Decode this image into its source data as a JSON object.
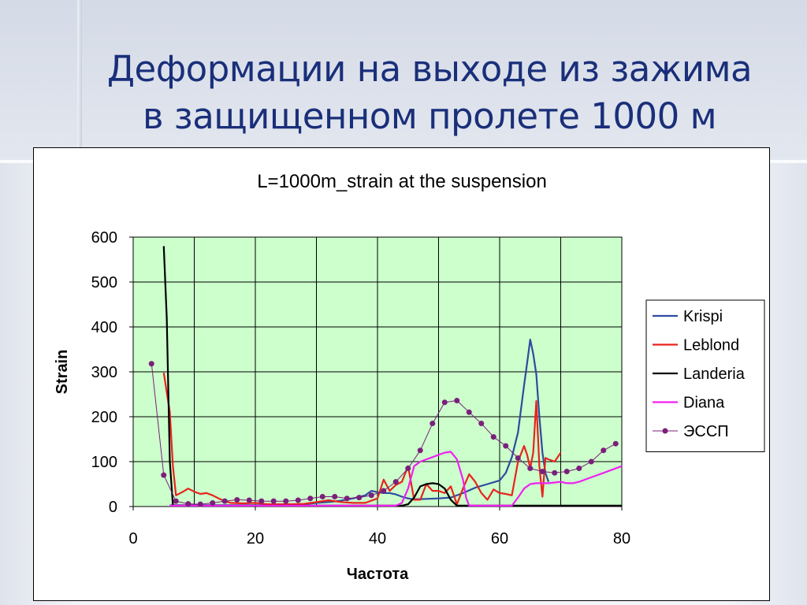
{
  "slide": {
    "title_line1": "Деформации на выходе из зажима",
    "title_line2": "в  защищенном пролете 1000 м"
  },
  "colors": {
    "title": "#1a2f7a",
    "plot_background": "#ccffcc",
    "grid": "#000000"
  },
  "chart_data": {
    "type": "line",
    "title": "L=1000m_strain at the suspension",
    "xlabel": "Частота",
    "ylabel": "Strain",
    "xlim": [
      0,
      80
    ],
    "ylim": [
      0,
      600
    ],
    "xticks": [
      "0",
      "20",
      "40",
      "60",
      "80"
    ],
    "yticks": [
      "0",
      "100",
      "200",
      "300",
      "400",
      "500",
      "600"
    ],
    "grid": true,
    "legend_position": "right",
    "series": [
      {
        "name": "Krispi",
        "color": "#2f4a9e",
        "markers": false,
        "points": [
          [
            6,
            3
          ],
          [
            8,
            3
          ],
          [
            10,
            3
          ],
          [
            12,
            3
          ],
          [
            14,
            3
          ],
          [
            16,
            3
          ],
          [
            18,
            3
          ],
          [
            20,
            3
          ],
          [
            22,
            3
          ],
          [
            24,
            3
          ],
          [
            26,
            4
          ],
          [
            28,
            5
          ],
          [
            30,
            8
          ],
          [
            32,
            10
          ],
          [
            34,
            13
          ],
          [
            36,
            18
          ],
          [
            38,
            25
          ],
          [
            39,
            35
          ],
          [
            40,
            32
          ],
          [
            41,
            30
          ],
          [
            42,
            30
          ],
          [
            43,
            27
          ],
          [
            44,
            22
          ],
          [
            45,
            18
          ],
          [
            46,
            16
          ],
          [
            48,
            17
          ],
          [
            50,
            18
          ],
          [
            52,
            20
          ],
          [
            54,
            30
          ],
          [
            56,
            42
          ],
          [
            58,
            50
          ],
          [
            60,
            58
          ],
          [
            61,
            75
          ],
          [
            62,
            110
          ],
          [
            63,
            165
          ],
          [
            64,
            270
          ],
          [
            64.5,
            320
          ],
          [
            65,
            372
          ],
          [
            65.5,
            340
          ],
          [
            66,
            295
          ],
          [
            66.5,
            200
          ],
          [
            67,
            120
          ],
          [
            67.5,
            75
          ],
          [
            68,
            55
          ]
        ]
      },
      {
        "name": "Leblond",
        "color": "#e8231d",
        "markers": false,
        "points": [
          [
            5,
            298
          ],
          [
            6,
            210
          ],
          [
            6.5,
            90
          ],
          [
            7,
            25
          ],
          [
            8,
            32
          ],
          [
            9,
            40
          ],
          [
            10,
            33
          ],
          [
            11,
            28
          ],
          [
            12,
            30
          ],
          [
            13,
            25
          ],
          [
            14,
            18
          ],
          [
            15,
            12
          ],
          [
            16,
            8
          ],
          [
            18,
            7
          ],
          [
            20,
            8
          ],
          [
            22,
            5
          ],
          [
            24,
            5
          ],
          [
            26,
            5
          ],
          [
            28,
            6
          ],
          [
            30,
            10
          ],
          [
            32,
            14
          ],
          [
            34,
            10
          ],
          [
            36,
            8
          ],
          [
            38,
            8
          ],
          [
            40,
            18
          ],
          [
            41,
            60
          ],
          [
            42,
            35
          ],
          [
            43,
            48
          ],
          [
            44,
            55
          ],
          [
            45,
            90
          ],
          [
            46,
            15
          ],
          [
            47,
            15
          ],
          [
            48,
            50
          ],
          [
            49,
            35
          ],
          [
            50,
            35
          ],
          [
            51,
            30
          ],
          [
            52,
            45
          ],
          [
            53,
            5
          ],
          [
            54,
            40
          ],
          [
            55,
            72
          ],
          [
            56,
            55
          ],
          [
            57,
            30
          ],
          [
            58,
            15
          ],
          [
            59,
            38
          ],
          [
            60,
            30
          ],
          [
            61,
            28
          ],
          [
            62,
            25
          ],
          [
            63,
            100
          ],
          [
            64,
            135
          ],
          [
            64.5,
            115
          ],
          [
            65,
            85
          ],
          [
            65.5,
            120
          ],
          [
            66,
            235
          ],
          [
            66.5,
            90
          ],
          [
            67,
            22
          ],
          [
            67.5,
            108
          ],
          [
            68,
            105
          ],
          [
            69,
            100
          ],
          [
            70,
            120
          ]
        ]
      },
      {
        "name": "Landeria",
        "color": "#000000",
        "markers": false,
        "points": [
          [
            5,
            580
          ],
          [
            5.5,
            420
          ],
          [
            6,
            100
          ],
          [
            6.5,
            3
          ],
          [
            7,
            2
          ],
          [
            10,
            2
          ],
          [
            20,
            2
          ],
          [
            30,
            2
          ],
          [
            40,
            2
          ],
          [
            44,
            2
          ],
          [
            45,
            5
          ],
          [
            46,
            20
          ],
          [
            47,
            45
          ],
          [
            48,
            50
          ],
          [
            49,
            52
          ],
          [
            50,
            50
          ],
          [
            51,
            40
          ],
          [
            52,
            15
          ],
          [
            53,
            2
          ],
          [
            55,
            2
          ],
          [
            60,
            2
          ],
          [
            70,
            2
          ],
          [
            80,
            2
          ]
        ]
      },
      {
        "name": "Diana",
        "color": "#f020f0",
        "markers": false,
        "points": [
          [
            6,
            2
          ],
          [
            10,
            2
          ],
          [
            20,
            2
          ],
          [
            30,
            2
          ],
          [
            40,
            2
          ],
          [
            43,
            2
          ],
          [
            44,
            8
          ],
          [
            45,
            40
          ],
          [
            46,
            90
          ],
          [
            47,
            100
          ],
          [
            48,
            105
          ],
          [
            49,
            110
          ],
          [
            50,
            115
          ],
          [
            51,
            120
          ],
          [
            52,
            122
          ],
          [
            53,
            105
          ],
          [
            54,
            60
          ],
          [
            54.5,
            20
          ],
          [
            55,
            2
          ],
          [
            58,
            2
          ],
          [
            62,
            2
          ],
          [
            63,
            20
          ],
          [
            64,
            40
          ],
          [
            65,
            50
          ],
          [
            66,
            52
          ],
          [
            68,
            52
          ],
          [
            70,
            55
          ],
          [
            71,
            52
          ],
          [
            72,
            52
          ],
          [
            73,
            55
          ],
          [
            75,
            65
          ],
          [
            77,
            75
          ],
          [
            80,
            90
          ]
        ]
      },
      {
        "name": "ЭССП",
        "color": "#7b1f7b",
        "markers": true,
        "points": [
          [
            3,
            318
          ],
          [
            5,
            70
          ],
          [
            7,
            12
          ],
          [
            9,
            6
          ],
          [
            11,
            5
          ],
          [
            13,
            8
          ],
          [
            15,
            12
          ],
          [
            17,
            15
          ],
          [
            19,
            14
          ],
          [
            21,
            12
          ],
          [
            23,
            12
          ],
          [
            25,
            12
          ],
          [
            27,
            14
          ],
          [
            29,
            18
          ],
          [
            31,
            22
          ],
          [
            33,
            22
          ],
          [
            35,
            18
          ],
          [
            37,
            20
          ],
          [
            39,
            25
          ],
          [
            41,
            35
          ],
          [
            43,
            55
          ],
          [
            45,
            85
          ],
          [
            47,
            125
          ],
          [
            49,
            185
          ],
          [
            51,
            232
          ],
          [
            53,
            236
          ],
          [
            55,
            210
          ],
          [
            57,
            185
          ],
          [
            59,
            155
          ],
          [
            61,
            135
          ],
          [
            63,
            108
          ],
          [
            65,
            85
          ],
          [
            67,
            78
          ],
          [
            69,
            75
          ],
          [
            71,
            78
          ],
          [
            73,
            85
          ],
          [
            75,
            100
          ],
          [
            77,
            125
          ],
          [
            79,
            140
          ]
        ]
      }
    ]
  }
}
